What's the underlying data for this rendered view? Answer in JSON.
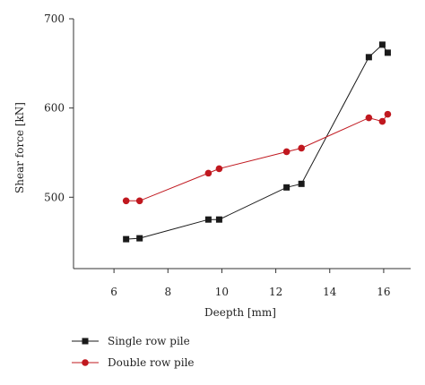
{
  "chart_data": {
    "type": "line",
    "title": "",
    "xlabel": "Deepth [mm]",
    "ylabel": "Shear force [kN]",
    "xlim": [
      4.5,
      17
    ],
    "ylim": [
      420,
      700
    ],
    "xticks": [
      6,
      8,
      10,
      12,
      14,
      16
    ],
    "yticks": [
      500,
      600,
      700
    ],
    "grid": false,
    "legend_position": "bottom-left",
    "series": [
      {
        "name": "Single row pile",
        "color": "#1a1a1a",
        "marker": "square",
        "x": [
          6.45,
          6.95,
          9.5,
          9.9,
          12.4,
          12.95,
          15.45,
          15.95,
          16.15
        ],
        "y": [
          453,
          454,
          475,
          475,
          511,
          515,
          657,
          671,
          662
        ]
      },
      {
        "name": "Double row pile",
        "color": "#c0181f",
        "marker": "circle",
        "x": [
          6.45,
          6.95,
          9.5,
          9.9,
          12.4,
          12.95,
          15.45,
          15.95,
          16.15
        ],
        "y": [
          496,
          496,
          527,
          532,
          551,
          555,
          589,
          585,
          593
        ]
      }
    ]
  }
}
